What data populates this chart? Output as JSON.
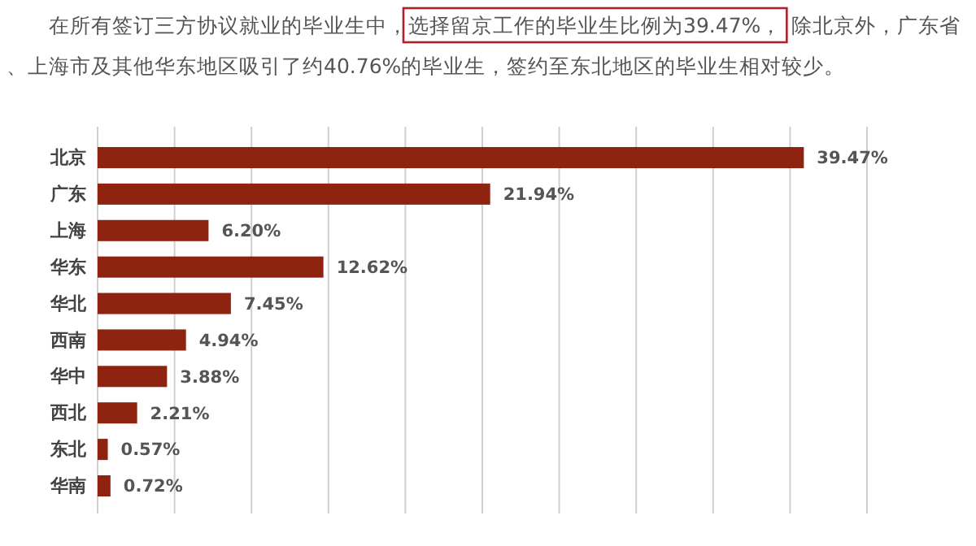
{
  "chart_data": {
    "type": "bar",
    "orientation": "horizontal",
    "annotations": [
      "在所有签订三方协议就业的毕业生中，",
      "选择留京工作的毕业生比例为39.47%，",
      "除北京外，广东省、上海市及其他华东地区吸引了约40.76%的毕业生，签约至东北地区的毕业生相对较少。"
    ],
    "categories": [
      "北京",
      "广东",
      "上海",
      "华东",
      "华北",
      "西南",
      "华中",
      "西北",
      "东北",
      "华南"
    ],
    "values": [
      39.47,
      21.94,
      6.2,
      12.62,
      7.45,
      4.94,
      3.88,
      2.21,
      0.57,
      0.72
    ],
    "value_labels": [
      "39.47%",
      "21.94%",
      "6.20%",
      "12.62%",
      "7.45%",
      "4.94%",
      "3.88%",
      "2.21%",
      "0.57%",
      "0.72%"
    ],
    "color": "#8e2410",
    "xlim": [
      0,
      43
    ],
    "xticks": [
      {
        "value": 0,
        "label": null
      },
      {
        "value": 4.3,
        "label": null
      },
      {
        "value": 8.6,
        "label": null
      },
      {
        "value": 12.9,
        "label": null
      },
      {
        "value": 17.2,
        "label": null
      },
      {
        "value": 21.5,
        "label": null
      },
      {
        "value": 25.8,
        "label": null
      },
      {
        "value": 30.1,
        "label": null
      },
      {
        "value": 34.4,
        "label": null
      },
      {
        "value": 38.7,
        "label": null
      },
      {
        "value": 43,
        "label": null
      }
    ],
    "grid": "x",
    "tick_labels": "y"
  }
}
